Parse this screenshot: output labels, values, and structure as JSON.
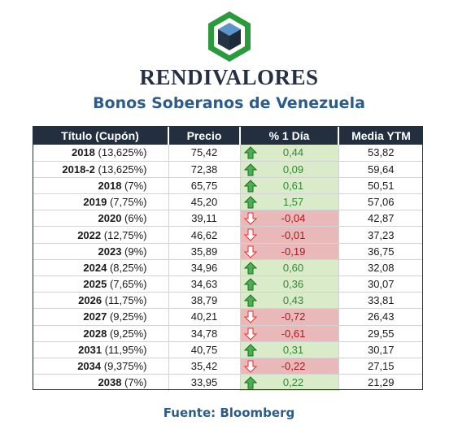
{
  "header": {
    "brand": "RENDIVALORES",
    "subtitle": "Bonos Soberanos de Venezuela"
  },
  "table": {
    "columns": [
      "Título (Cupón)",
      "Precio",
      "% 1 Día",
      "Media YTM"
    ],
    "rows": [
      {
        "year": "2018",
        "coupon": "(13,625%)",
        "price": "75,42",
        "change": "0,44",
        "direction": "up",
        "ytm": "53,82"
      },
      {
        "year": "2018-2",
        "coupon": "(13,625%)",
        "price": "72,38",
        "change": "0,09",
        "direction": "up",
        "ytm": "59,64"
      },
      {
        "year": "2018",
        "coupon": "(7%)",
        "price": "65,75",
        "change": "0,61",
        "direction": "up",
        "ytm": "50,51"
      },
      {
        "year": "2019",
        "coupon": "(7,75%)",
        "price": "45,20",
        "change": "1,57",
        "direction": "up",
        "ytm": "57,06"
      },
      {
        "year": "2020",
        "coupon": "(6%)",
        "price": "39,11",
        "change": "-0,04",
        "direction": "down",
        "ytm": "42,87"
      },
      {
        "year": "2022",
        "coupon": "(12,75%)",
        "price": "46,62",
        "change": "-0,01",
        "direction": "down",
        "ytm": "37,23"
      },
      {
        "year": "2023",
        "coupon": "(9%)",
        "price": "35,89",
        "change": "-0,19",
        "direction": "down",
        "ytm": "36,75"
      },
      {
        "year": "2024",
        "coupon": "(8,25%)",
        "price": "34,96",
        "change": "0,60",
        "direction": "up",
        "ytm": "32,08"
      },
      {
        "year": "2025",
        "coupon": "(7,65%)",
        "price": "34,63",
        "change": "0,36",
        "direction": "up",
        "ytm": "30,07"
      },
      {
        "year": "2026",
        "coupon": "(11,75%)",
        "price": "38,79",
        "change": "0,43",
        "direction": "up",
        "ytm": "33,81"
      },
      {
        "year": "2027",
        "coupon": "(9,25%)",
        "price": "40,21",
        "change": "-0,72",
        "direction": "down",
        "ytm": "26,43"
      },
      {
        "year": "2028",
        "coupon": "(9,25%)",
        "price": "34,78",
        "change": "-0,61",
        "direction": "down",
        "ytm": "29,55"
      },
      {
        "year": "2031",
        "coupon": "(11,95%)",
        "price": "40,75",
        "change": "0,31",
        "direction": "up",
        "ytm": "30,17"
      },
      {
        "year": "2034",
        "coupon": "(9,375%)",
        "price": "35,42",
        "change": "-0,22",
        "direction": "down",
        "ytm": "27,15"
      },
      {
        "year": "2038",
        "coupon": "(7%)",
        "price": "33,95",
        "change": "0,22",
        "direction": "up",
        "ytm": "21,29"
      }
    ]
  },
  "footer": {
    "source": "Fuente: Bloomberg"
  },
  "colors": {
    "header_bg": "#232f3f",
    "brand_text": "#253142",
    "subtitle_text": "#2e5c8a",
    "up_fill": "#d9ebc9",
    "down_fill": "#e9b9b9",
    "up_text": "#2e8b33",
    "down_text": "#b0161b",
    "logo_hex": "#2a9a3c",
    "logo_cube_top": "#5b95c9"
  },
  "icons": {
    "logo": "cube-hexagon-logo",
    "up": "arrow-up-icon",
    "down": "arrow-down-icon"
  }
}
